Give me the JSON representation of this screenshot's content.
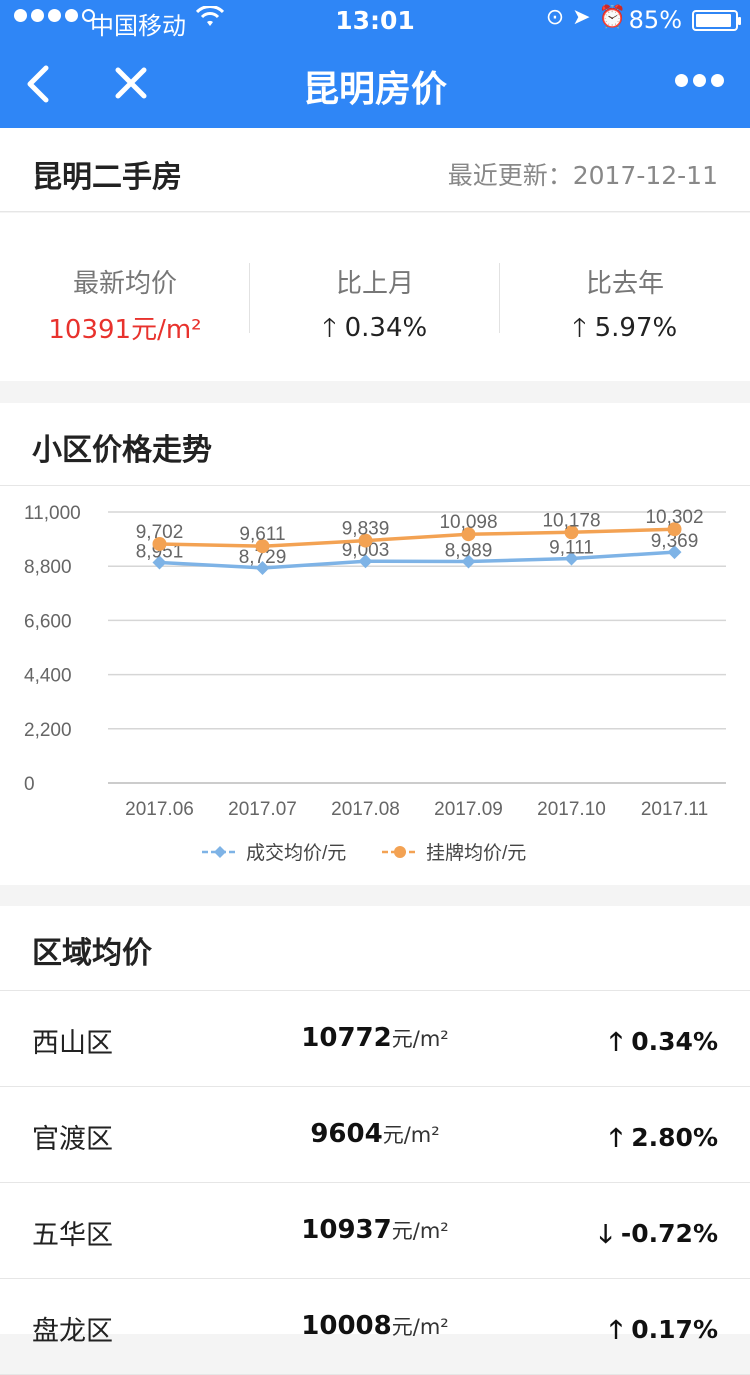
{
  "status_bar": {
    "carrier": "中国移动",
    "time": "13:01",
    "battery": "85%",
    "battery_level": 0.85
  },
  "nav": {
    "title": "昆明房价"
  },
  "overview": {
    "title": "昆明二手房",
    "updated_label": "最近更新：2017-12-11"
  },
  "stats": [
    {
      "label": "最新均价",
      "value": "10391元/m²",
      "color": "#e8322d"
    },
    {
      "label": "比上月",
      "value": "0.34%",
      "direction": "up"
    },
    {
      "label": "比去年",
      "value": "5.97%",
      "direction": "up"
    }
  ],
  "trend": {
    "title": "小区价格走势"
  },
  "chart_data": {
    "type": "line",
    "categories": [
      "2017.06",
      "2017.07",
      "2017.08",
      "2017.09",
      "2017.10",
      "2017.11"
    ],
    "ylim": [
      0,
      11000
    ],
    "yticks": [
      "11,000",
      "8,800",
      "6,600",
      "4,400",
      "2,200",
      "0"
    ],
    "grid": true,
    "legend": "bottom",
    "series": [
      {
        "name": "成交均价/元",
        "color": "#7eb3e6",
        "marker": "diamond",
        "values": [
          8951,
          8729,
          9003,
          8989,
          9111,
          9369
        ],
        "labels": [
          "8,951",
          "8,729",
          "9,003",
          "8,989",
          "9,111",
          "9,369"
        ]
      },
      {
        "name": "挂牌均价/元",
        "color": "#f3a253",
        "marker": "circle",
        "values": [
          9702,
          9611,
          9839,
          10098,
          10178,
          10302
        ],
        "labels": [
          "9,702",
          "9,611",
          "9,839",
          "10,098",
          "10,178",
          "10,302"
        ]
      }
    ]
  },
  "regions": {
    "title": "区域均价",
    "unit": "元/m²",
    "rows": [
      {
        "name": "西山区",
        "price": "10772",
        "change": "0.34%",
        "direction": "up"
      },
      {
        "name": "官渡区",
        "price": "9604",
        "change": "2.80%",
        "direction": "up"
      },
      {
        "name": "五华区",
        "price": "10937",
        "change": "-0.72%",
        "direction": "down"
      },
      {
        "name": "盘龙区",
        "price": "10008",
        "change": "0.17%",
        "direction": "up"
      }
    ]
  }
}
